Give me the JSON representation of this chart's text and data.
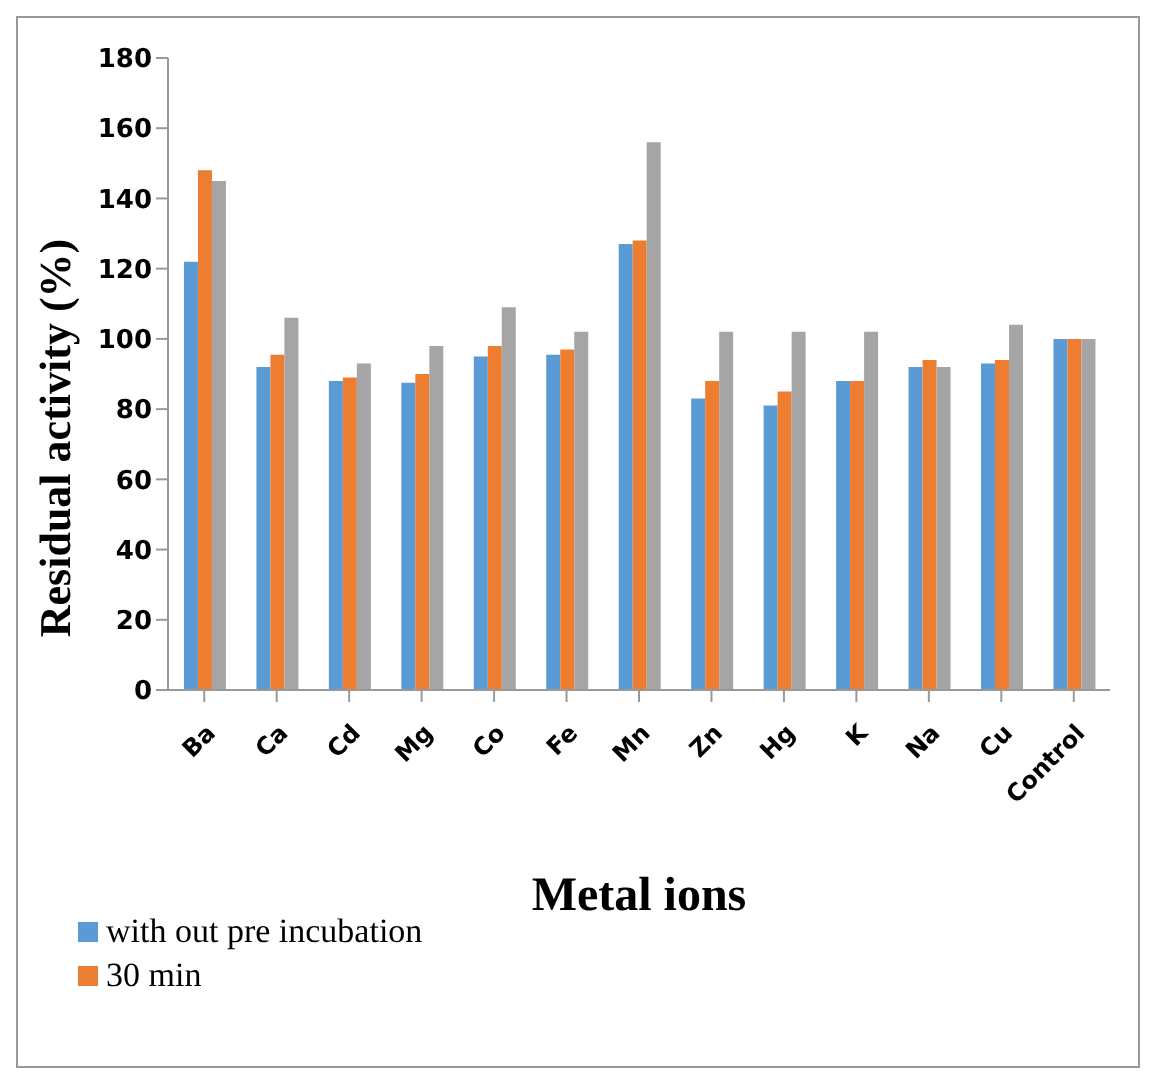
{
  "chart_data": {
    "type": "bar",
    "xlabel": "Metal ions",
    "ylabel": "Residual activity (%)",
    "categories": [
      "Ba",
      "Ca",
      "Cd",
      "Mg",
      "Co",
      "Fe",
      "Mn",
      "Zn",
      "Hg",
      "K",
      "Na",
      "Cu",
      "Control"
    ],
    "series": [
      {
        "name": "with out pre incubation",
        "color": "#5b9bd5",
        "values": [
          122,
          92,
          88,
          87.5,
          95,
          95.5,
          127,
          83,
          81,
          88,
          92,
          93,
          100
        ]
      },
      {
        "name": "30 min",
        "color": "#ed7d31",
        "values": [
          148,
          95.5,
          89,
          90,
          98,
          97,
          128,
          88,
          85,
          88,
          94,
          94,
          100
        ]
      },
      {
        "color": "#a5a5a5",
        "values": [
          145,
          106,
          93,
          98,
          109,
          102,
          156,
          102,
          102,
          102,
          92,
          104,
          100
        ]
      }
    ],
    "ylim": [
      0,
      180
    ],
    "yticks": [
      0,
      20,
      40,
      60,
      80,
      100,
      120,
      140,
      160,
      180
    ],
    "legend": "bottom left"
  }
}
